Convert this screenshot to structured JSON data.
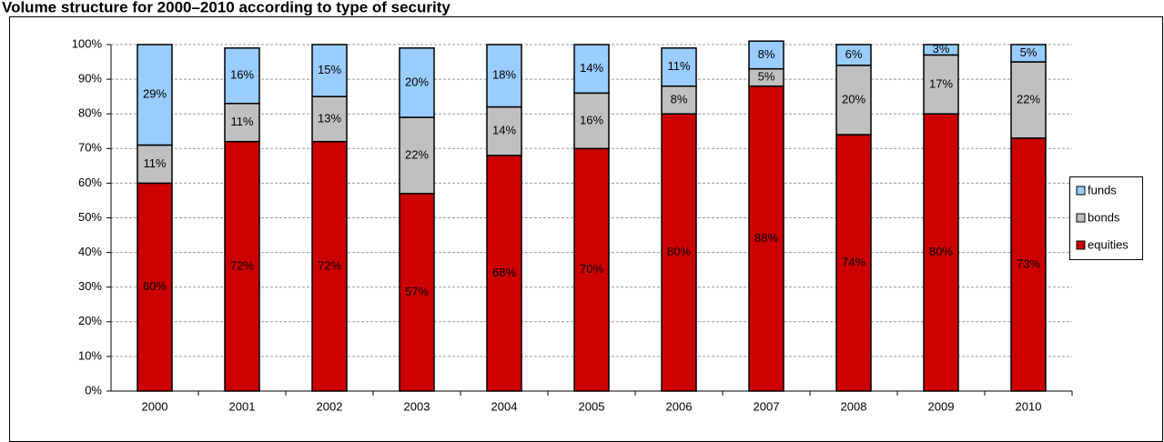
{
  "chart_data": {
    "type": "stacked_bar",
    "title": "Volume structure for 2000–2010 according to type of security",
    "categories": [
      "2000",
      "2001",
      "2002",
      "2003",
      "2004",
      "2005",
      "2006",
      "2007",
      "2008",
      "2009",
      "2010"
    ],
    "series": [
      {
        "name": "equities",
        "color": "#cc0000",
        "values": [
          60,
          72,
          72,
          57,
          68,
          70,
          80,
          88,
          74,
          80,
          73
        ],
        "value_labels": [
          "60%",
          "72%",
          "72%",
          "57%",
          "68%",
          "70%",
          "80%",
          "88%",
          "74%",
          "80%",
          "73%"
        ]
      },
      {
        "name": "bonds",
        "color": "#c0c0c0",
        "values": [
          11,
          11,
          13,
          22,
          14,
          16,
          8,
          5,
          20,
          17,
          22
        ],
        "value_labels": [
          "11%",
          "11%",
          "13%",
          "22%",
          "14%",
          "16%",
          "8%",
          "5%",
          "20%",
          "17%",
          "22%"
        ]
      },
      {
        "name": "funds",
        "color": "#99ccff",
        "values": [
          29,
          16,
          15,
          20,
          18,
          14,
          11,
          8,
          6,
          3,
          5
        ],
        "value_labels": [
          "29%",
          "16%",
          "15%",
          "20%",
          "18%",
          "14%",
          "11%",
          "8%",
          "6%",
          "3%",
          "5%"
        ]
      }
    ],
    "ylim": [
      0,
      100
    ],
    "yticks": [
      {
        "value": 0,
        "label": "0%"
      },
      {
        "value": 10,
        "label": "10%"
      },
      {
        "value": 20,
        "label": "20%"
      },
      {
        "value": 30,
        "label": "30%"
      },
      {
        "value": 40,
        "label": "40%"
      },
      {
        "value": 50,
        "label": "50%"
      },
      {
        "value": 60,
        "label": "60%"
      },
      {
        "value": 70,
        "label": "70%"
      },
      {
        "value": 80,
        "label": "80%"
      },
      {
        "value": 90,
        "label": "90%"
      },
      {
        "value": 100,
        "label": "100%"
      }
    ],
    "grid": true,
    "legend": "right"
  }
}
